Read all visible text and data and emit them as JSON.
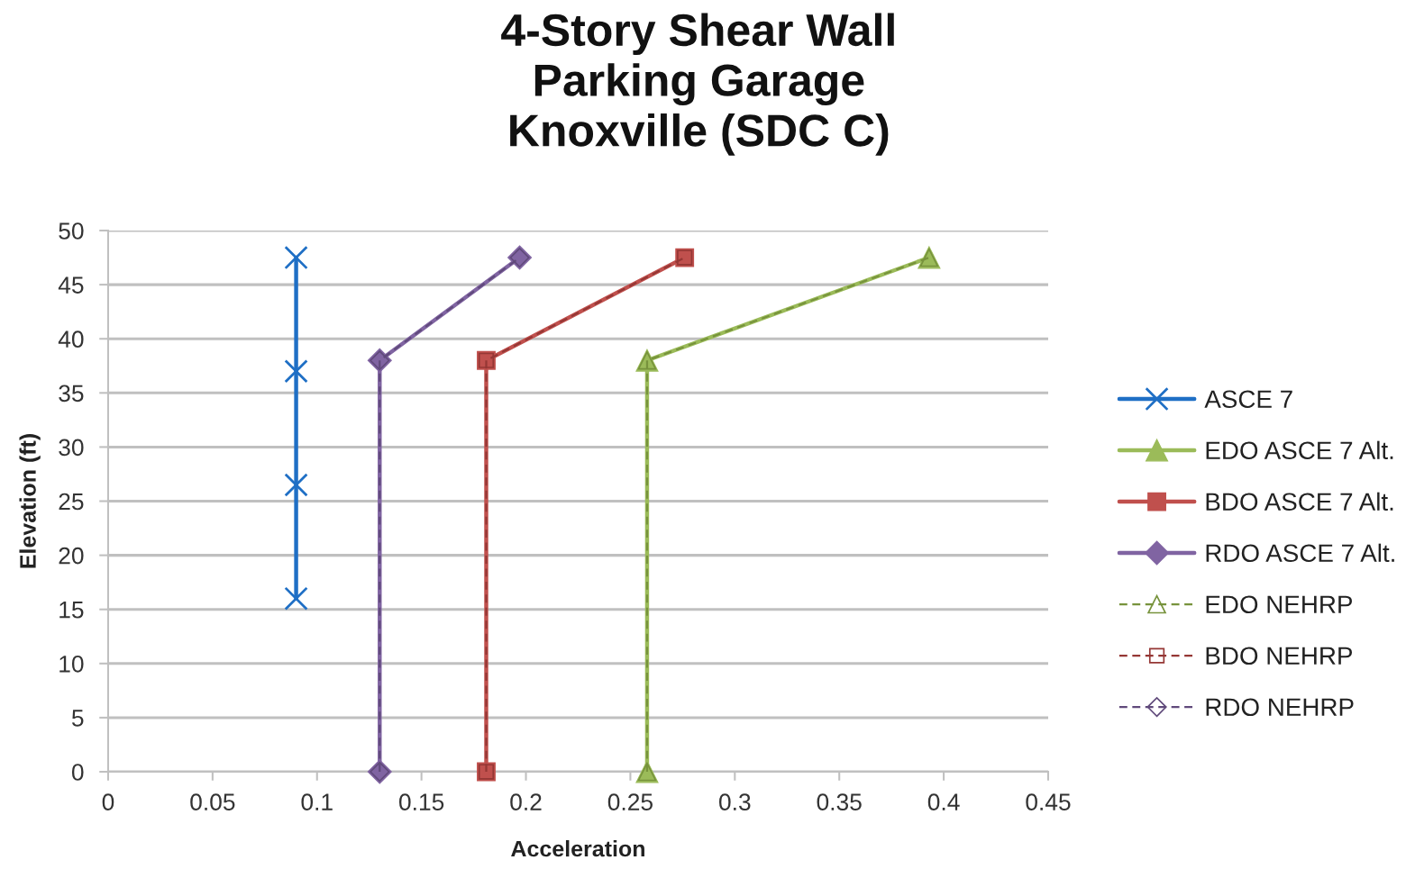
{
  "chart_data": {
    "type": "line",
    "title": "4-Story Shear Wall\nParking Garage\nKnoxville (SDC C)",
    "xlabel": "Acceleration",
    "ylabel": "Elevation (ft)",
    "xlim": [
      0,
      0.45
    ],
    "xticks": [
      0,
      0.05,
      0.1,
      0.15,
      0.2,
      0.25,
      0.3,
      0.35,
      0.4,
      0.45
    ],
    "ylim": [
      0,
      50
    ],
    "yticks": [
      0,
      5,
      10,
      15,
      20,
      25,
      30,
      35,
      40,
      45,
      50
    ],
    "grid": "y",
    "legend": "right",
    "series": [
      {
        "name": "ASCE 7",
        "color": "#1f6fc5",
        "marker": "cross",
        "line_style": "solid",
        "x": [
          0.09,
          0.09,
          0.09,
          0.09
        ],
        "values": [
          16,
          26.5,
          37,
          47.5
        ]
      },
      {
        "name": "EDO ASCE 7 Alt.",
        "color": "#9bbb59",
        "marker": "triangle",
        "line_style": "solid",
        "x": [
          0.258,
          0.258,
          0.393
        ],
        "values": [
          0,
          38,
          47.5
        ]
      },
      {
        "name": "BDO ASCE 7 Alt.",
        "color": "#c0504d",
        "marker": "square",
        "line_style": "solid",
        "x": [
          0.181,
          0.181,
          0.276
        ],
        "values": [
          0,
          38,
          47.5
        ]
      },
      {
        "name": "RDO ASCE 7 Alt.",
        "color": "#8064a2",
        "marker": "diamond",
        "line_style": "solid",
        "x": [
          0.13,
          0.13,
          0.197
        ],
        "values": [
          0,
          38,
          47.5
        ]
      },
      {
        "name": "EDO NEHRP",
        "color": "#77933c",
        "marker": "triangle",
        "line_style": "dashed",
        "x": [
          0.258,
          0.258,
          0.393
        ],
        "values": [
          0,
          38,
          47.5
        ]
      },
      {
        "name": "BDO NEHRP",
        "color": "#953735",
        "marker": "square",
        "line_style": "dashed",
        "x": [
          0.181,
          0.181,
          0.276
        ],
        "values": [
          0,
          38,
          47.5
        ]
      },
      {
        "name": "RDO NEHRP",
        "color": "#604a7b",
        "marker": "diamond",
        "line_style": "dashed",
        "x": [
          0.13,
          0.13,
          0.197
        ],
        "values": [
          0,
          38,
          47.5
        ]
      }
    ]
  }
}
